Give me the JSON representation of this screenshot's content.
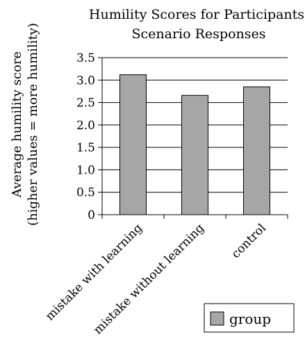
{
  "chart_data": {
    "type": "bar",
    "title": [
      "Humility Scores for Participants’",
      "Scenario Responses"
    ],
    "ylabel": [
      "Average humility score",
      "(higher values = more humility)"
    ],
    "xlabel": "",
    "categories": [
      "mistake with learning",
      "mistake without learning",
      "control"
    ],
    "series": [
      {
        "name": "group",
        "values": [
          3.12,
          2.66,
          2.85
        ]
      }
    ],
    "ylim": [
      0,
      3.5
    ],
    "yticks": [
      "0",
      "0.5",
      "1.0",
      "1.5",
      "2.0",
      "2.5",
      "3.0",
      "3.5"
    ],
    "grid": true,
    "legend_position": "bottom-right",
    "colors": {
      "bar_fill": "#a6a6a6",
      "bar_stroke": "#000000",
      "grid": "#000000",
      "axis": "#000000"
    }
  }
}
